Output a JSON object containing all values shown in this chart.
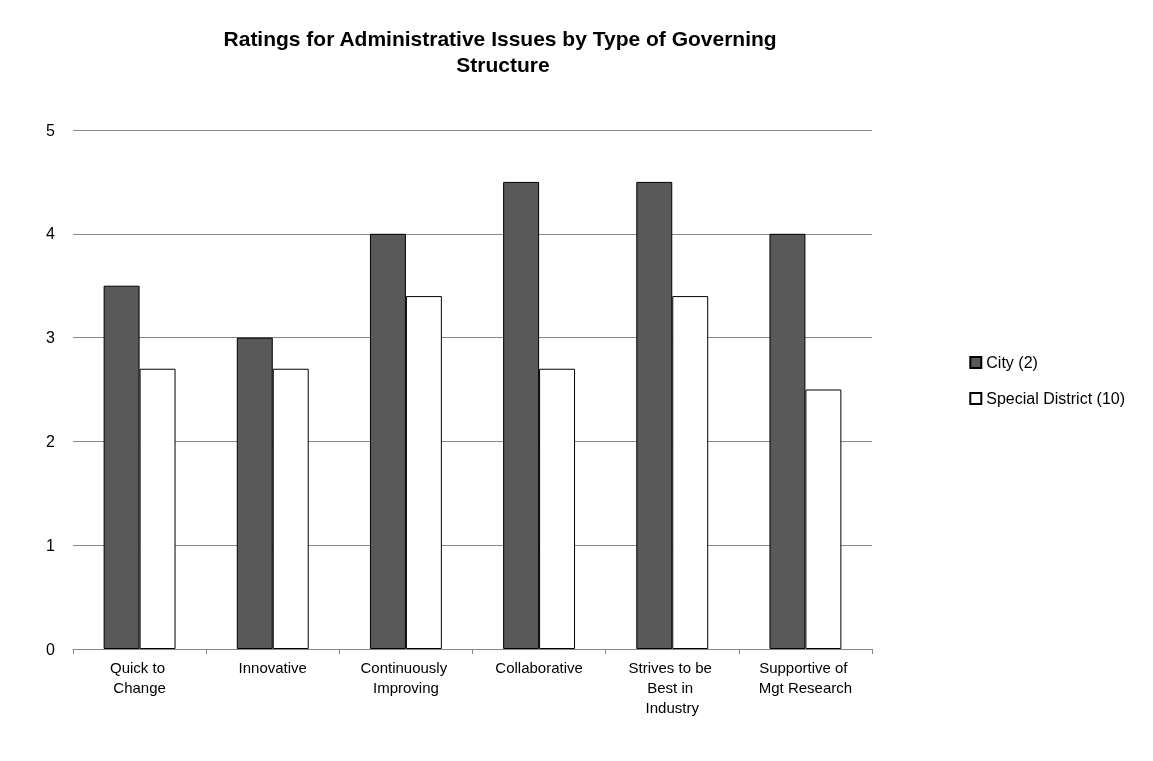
{
  "chart_data": {
    "type": "bar",
    "title": "Ratings for Administrative Issues by Type of Governing Structure",
    "categories": [
      "Quick to Change",
      "Innovative",
      "Continuously Improving",
      "Collaborative",
      "Strives to be Best in Industry",
      "Supportive of Mgt Research"
    ],
    "series": [
      {
        "name": "City (2)",
        "color": "#595959",
        "values": [
          3.5,
          3,
          4,
          4.5,
          4.5,
          4
        ]
      },
      {
        "name": "Special District (10)",
        "color": "#ffffff",
        "values": [
          2.7,
          2.7,
          3.4,
          2.7,
          3.4,
          2.5
        ]
      }
    ],
    "ylim": [
      0,
      5
    ],
    "yticks": [
      0,
      1,
      2,
      3,
      4,
      5
    ],
    "grid": "y",
    "legend": "right"
  }
}
